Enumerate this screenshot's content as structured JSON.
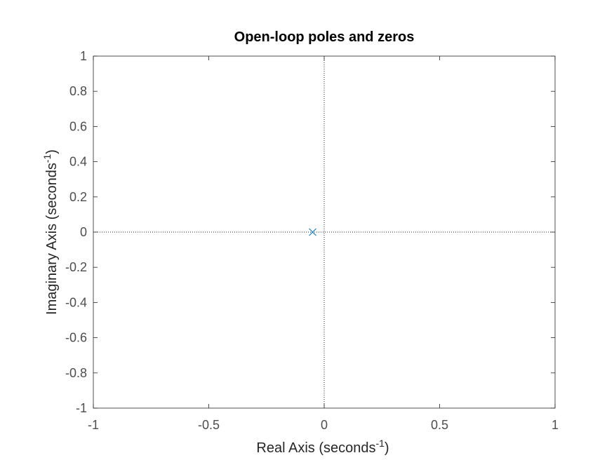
{
  "chart_data": {
    "type": "scatter",
    "title": "Open-loop poles and zeros",
    "xlabel": "Real Axis (seconds",
    "ylabel": "Imaginary Axis (seconds",
    "axis_unit_exponent": "-1",
    "axis_label_close": ")",
    "xlim": [
      -1,
      1
    ],
    "ylim": [
      -1,
      1
    ],
    "xticks": [
      -1,
      -0.5,
      0,
      0.5,
      1
    ],
    "xtick_labels": [
      "-1",
      "-0.5",
      "0",
      "0.5",
      "1"
    ],
    "yticks": [
      -1,
      -0.8,
      -0.6,
      -0.4,
      -0.2,
      0,
      0.2,
      0.4,
      0.6,
      0.8,
      1
    ],
    "ytick_labels": [
      "-1",
      "-0.8",
      "-0.6",
      "-0.4",
      "-0.2",
      "0",
      "0.2",
      "0.4",
      "0.6",
      "0.8",
      "1"
    ],
    "grid": false,
    "reference_lines": {
      "x": 0,
      "y": 0,
      "style": "dotted"
    },
    "series": [
      {
        "marker": "x",
        "color": "#0072bd",
        "points": [
          {
            "x": -0.05,
            "y": 0
          }
        ]
      }
    ],
    "colors": {
      "axis": "#262626",
      "tick_label": "#4d4d4d",
      "marker": "#0072bd"
    }
  }
}
